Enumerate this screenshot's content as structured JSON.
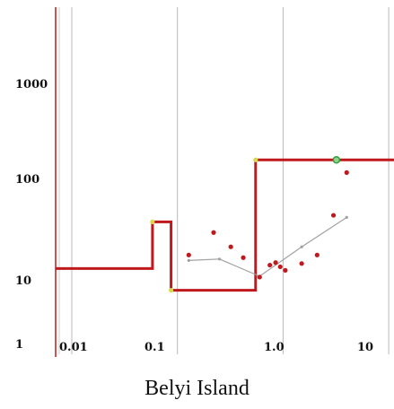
{
  "chart_data": {
    "type": "line",
    "title": "Belyi Island",
    "xlabel": "",
    "ylabel": "",
    "x_scale": "log",
    "y_scale": "log",
    "xlim": [
      0.005,
      25
    ],
    "ylim": [
      1,
      5000
    ],
    "grid": "vertical",
    "x_ticks": [
      {
        "value": 0.01,
        "label": "0.01"
      },
      {
        "value": 0.1,
        "label": "0.1"
      },
      {
        "value": 1,
        "label": "1.0"
      },
      {
        "value": 10,
        "label": "10"
      }
    ],
    "y_ticks": [
      {
        "value": 1,
        "label": "1"
      },
      {
        "value": 10,
        "label": "10"
      },
      {
        "value": 100,
        "label": "100"
      },
      {
        "value": 1000,
        "label": "1000"
      }
    ],
    "series": [
      {
        "kind": "step",
        "color": "#c0181c",
        "points": [
          [
            0.005,
            12
          ],
          [
            0.058,
            12
          ],
          [
            0.058,
            36
          ],
          [
            0.087,
            36
          ],
          [
            0.087,
            7.2
          ],
          [
            0.55,
            7.2
          ],
          [
            0.55,
            155
          ],
          [
            25,
            155
          ]
        ]
      },
      {
        "kind": "scatter",
        "color": "#c0181c",
        "points": [
          [
            0.128,
            16.5
          ],
          [
            0.22,
            28
          ],
          [
            0.32,
            20
          ],
          [
            0.42,
            15.5
          ],
          [
            0.6,
            9.8
          ],
          [
            0.75,
            13
          ],
          [
            0.85,
            13.8
          ],
          [
            0.94,
            12.5
          ],
          [
            1.05,
            11.5
          ],
          [
            1.5,
            13.5
          ],
          [
            2.1,
            16.5
          ],
          [
            3.0,
            42
          ],
          [
            4.0,
            115
          ]
        ]
      },
      {
        "kind": "line",
        "color": "#a0a0a0",
        "points": [
          [
            0.128,
            14.5
          ],
          [
            0.25,
            15
          ],
          [
            0.6,
            10
          ],
          [
            1.5,
            20
          ],
          [
            4.0,
            40
          ]
        ]
      }
    ],
    "highlight_points": [
      {
        "x": 0.058,
        "y": 36,
        "color": "#d8d84a"
      },
      {
        "x": 0.087,
        "y": 7.2,
        "color": "#d8d84a"
      },
      {
        "x": 0.55,
        "y": 155,
        "color": "#d8d84a"
      },
      {
        "x": 3.2,
        "y": 155,
        "color": "#2f9e3a"
      }
    ]
  }
}
